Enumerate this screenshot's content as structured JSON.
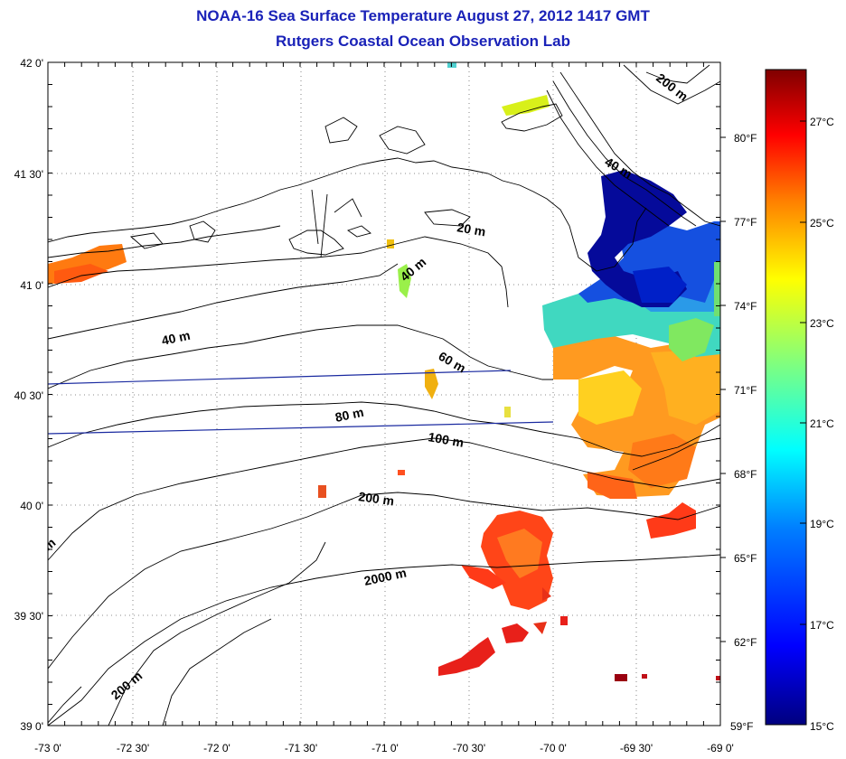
{
  "title": "NOAA-16 Sea Surface Temperature August 27, 2012 1417 GMT",
  "subtitle": "Rutgers Coastal Ocean Observation Lab",
  "map": {
    "lon_labels": [
      "-73 0'",
      "-72 30'",
      "-72 0'",
      "-71 30'",
      "-71 0'",
      "-70 30'",
      "-70 0'",
      "-69 30'",
      "-69 0'"
    ],
    "lat_labels": [
      "42 0'",
      "41 30'",
      "41 0'",
      "40 30'",
      "40 0'",
      "39 30'",
      "39 0'"
    ],
    "contour_labels": [
      "200 m",
      "40 m",
      "20 m",
      "40 m",
      "40 m",
      "60 m",
      "80 m",
      "100 m",
      "200 m",
      "2000 m",
      "200 m",
      "m"
    ]
  },
  "colorbar": {
    "fahrenheit_labels": [
      "80°F",
      "77°F",
      "74°F",
      "71°F",
      "68°F",
      "65°F",
      "62°F",
      "59°F"
    ],
    "celsius_labels": [
      "27°C",
      "25°C",
      "23°C",
      "21°C",
      "19°C",
      "17°C",
      "15°C"
    ],
    "colors": [
      "#00007f",
      "#0000ff",
      "#007fff",
      "#00ffff",
      "#7fff7f",
      "#ffff00",
      "#ff7f00",
      "#ff0000",
      "#7f0000"
    ]
  }
}
